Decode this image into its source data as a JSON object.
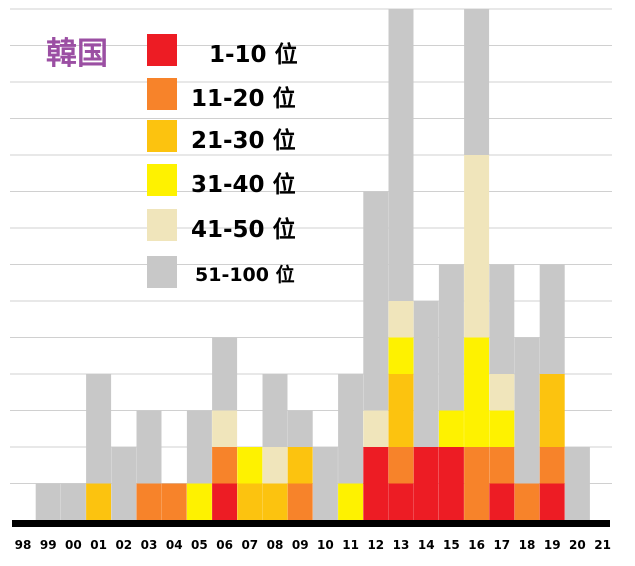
{
  "chart_data": {
    "type": "bar",
    "title": "韓国",
    "stacked": true,
    "ylim": [
      0,
      14
    ],
    "grid": true,
    "legend_position": "top-left",
    "categories": [
      "98",
      "99",
      "00",
      "01",
      "02",
      "03",
      "04",
      "05",
      "06",
      "07",
      "08",
      "09",
      "10",
      "11",
      "12",
      "13",
      "14",
      "15",
      "16",
      "17",
      "18",
      "19",
      "20",
      "21"
    ],
    "series": [
      {
        "name": "1-10 位",
        "color": "#ed1c24",
        "values": [
          0,
          0,
          0,
          0,
          0,
          0,
          0,
          0,
          1,
          0,
          0,
          0,
          0,
          0,
          2,
          1,
          2,
          2,
          0,
          1,
          0,
          1,
          0,
          0
        ]
      },
      {
        "name": "11-20 位",
        "color": "#f7832a",
        "values": [
          0,
          0,
          0,
          0,
          0,
          1,
          1,
          0,
          1,
          0,
          0,
          1,
          0,
          0,
          0,
          1,
          0,
          0,
          2,
          1,
          1,
          1,
          0,
          0
        ]
      },
      {
        "name": "21-30 位",
        "color": "#fcc30f",
        "values": [
          0,
          0,
          0,
          1,
          0,
          0,
          0,
          0,
          0,
          1,
          1,
          1,
          0,
          0,
          0,
          2,
          0,
          0,
          0,
          0,
          0,
          2,
          0,
          0
        ]
      },
      {
        "name": "31-40 位",
        "color": "#fef200",
        "values": [
          0,
          0,
          0,
          0,
          0,
          0,
          0,
          1,
          0,
          1,
          0,
          0,
          0,
          1,
          0,
          1,
          0,
          1,
          3,
          1,
          0,
          0,
          0,
          0
        ]
      },
      {
        "name": "41-50 位",
        "color": "#f0e5bb",
        "values": [
          0,
          0,
          0,
          0,
          0,
          0,
          0,
          0,
          1,
          0,
          1,
          0,
          0,
          0,
          1,
          1,
          0,
          0,
          5,
          1,
          0,
          0,
          0,
          0
        ]
      },
      {
        "name": "51-100 位",
        "color": "#c8c8c8",
        "values": [
          0,
          1,
          1,
          3,
          2,
          2,
          0,
          2,
          2,
          0,
          2,
          1,
          2,
          3,
          6,
          8,
          4,
          4,
          4,
          3,
          4,
          3,
          2,
          0
        ]
      }
    ]
  }
}
